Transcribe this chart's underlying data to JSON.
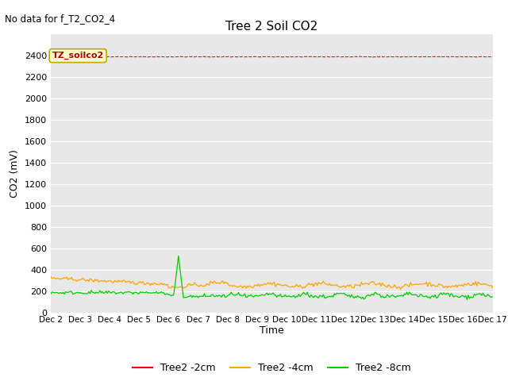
{
  "title": "Tree 2 Soil CO2",
  "no_data_text": "No data for f_T2_CO2_4",
  "ylabel": "CO2 (mV)",
  "xlabel": "Time",
  "ylim": [
    0,
    2600
  ],
  "yticks": [
    0,
    200,
    400,
    600,
    800,
    1000,
    1200,
    1400,
    1600,
    1800,
    2000,
    2200,
    2400
  ],
  "bg_color": "#e8e8e8",
  "fig_bg_color": "#ffffff",
  "annotation_text": "TZ_soilco2",
  "x_tick_labels": [
    "Dec 2",
    "Dec 3",
    "Dec 4",
    "Dec 5",
    "Dec 6",
    "Dec 7",
    "Dec 8",
    "Dec 9",
    "Dec 10",
    "Dec 11",
    "Dec 12",
    "Dec 13",
    "Dec 14",
    "Dec 15",
    "Dec 16",
    "Dec 17"
  ],
  "n_points": 361,
  "xlim": [
    0,
    360
  ],
  "red_y": 2390,
  "orange_start": 320,
  "orange_mid": 255,
  "green_base": 185,
  "green_spike": 520,
  "green_post_base": 145
}
